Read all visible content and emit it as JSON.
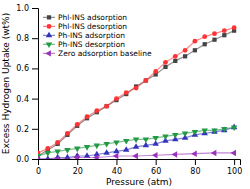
{
  "chart_data": {
    "type": "line",
    "xlabel": "Pressure (atm)",
    "ylabel": "Excess Hydrogen Uptake (wt%)",
    "xlim": [
      0,
      103
    ],
    "ylim": [
      0,
      1.0
    ],
    "xticks": [
      0,
      20,
      40,
      60,
      80,
      100
    ],
    "yticks": [
      {
        "value": 0.0,
        "label": "0.0"
      },
      0.2,
      0.4,
      0.6,
      0.8,
      {
        "value": 1.0,
        "label": "1.0"
      }
    ],
    "legend": "top-left",
    "grid": false,
    "series": [
      {
        "name": "Phl-INS adsorption",
        "color": "#444444",
        "marker": "square",
        "line_style": "solid",
        "x": [
          0,
          5,
          10,
          15,
          20,
          25,
          30,
          35,
          40,
          45,
          50,
          55,
          60,
          65,
          70,
          75,
          80,
          85,
          90,
          95,
          100
        ],
        "values": [
          0.02,
          0.06,
          0.1,
          0.16,
          0.22,
          0.27,
          0.31,
          0.35,
          0.39,
          0.43,
          0.48,
          0.52,
          0.56,
          0.61,
          0.65,
          0.68,
          0.72,
          0.76,
          0.79,
          0.82,
          0.85
        ]
      },
      {
        "name": "Phl-INS desorption",
        "color": "#ff3333",
        "marker": "circle",
        "line_style": "solid",
        "x": [
          0,
          5,
          10,
          15,
          20,
          25,
          30,
          35,
          40,
          45,
          50,
          55,
          60,
          65,
          70,
          75,
          80,
          85,
          90,
          95,
          100
        ],
        "values": [
          0.04,
          0.07,
          0.11,
          0.17,
          0.23,
          0.28,
          0.32,
          0.35,
          0.4,
          0.44,
          0.47,
          0.52,
          0.58,
          0.64,
          0.68,
          0.72,
          0.78,
          0.81,
          0.83,
          0.85,
          0.87
        ]
      },
      {
        "name": "Ph-INS adsorption",
        "color": "#3333bb",
        "marker": "triangle-up",
        "line_style": "solid",
        "x": [
          0,
          5,
          10,
          15,
          20,
          25,
          30,
          35,
          40,
          45,
          50,
          55,
          60,
          65,
          70,
          75,
          80,
          85,
          90,
          95,
          100
        ],
        "values": [
          0.0,
          0.0,
          0.01,
          0.01,
          0.02,
          0.02,
          0.03,
          0.04,
          0.05,
          0.06,
          0.08,
          0.09,
          0.1,
          0.12,
          0.13,
          0.14,
          0.16,
          0.17,
          0.18,
          0.19,
          0.21
        ]
      },
      {
        "name": "Ph-INS desorption",
        "color": "#229944",
        "marker": "triangle-down",
        "line_style": "solid",
        "x": [
          0,
          5,
          10,
          15,
          20,
          25,
          30,
          35,
          40,
          45,
          50,
          55,
          60,
          65,
          70,
          75,
          80,
          85,
          90,
          95,
          100
        ],
        "values": [
          0.02,
          0.04,
          0.05,
          0.06,
          0.07,
          0.08,
          0.09,
          0.1,
          0.11,
          0.12,
          0.13,
          0.13,
          0.14,
          0.15,
          0.16,
          0.17,
          0.18,
          0.19,
          0.19,
          0.2,
          0.21
        ]
      },
      {
        "name": "Zero adsorption baseline",
        "color": "#9933bb",
        "marker": "triangle-left",
        "line_style": "solid",
        "x": [
          0,
          10,
          20,
          30,
          40,
          50,
          60,
          70,
          80,
          90,
          100
        ],
        "values": [
          0.0,
          0.0,
          0.01,
          0.01,
          0.02,
          0.02,
          0.025,
          0.03,
          0.035,
          0.04,
          0.04
        ]
      }
    ]
  }
}
